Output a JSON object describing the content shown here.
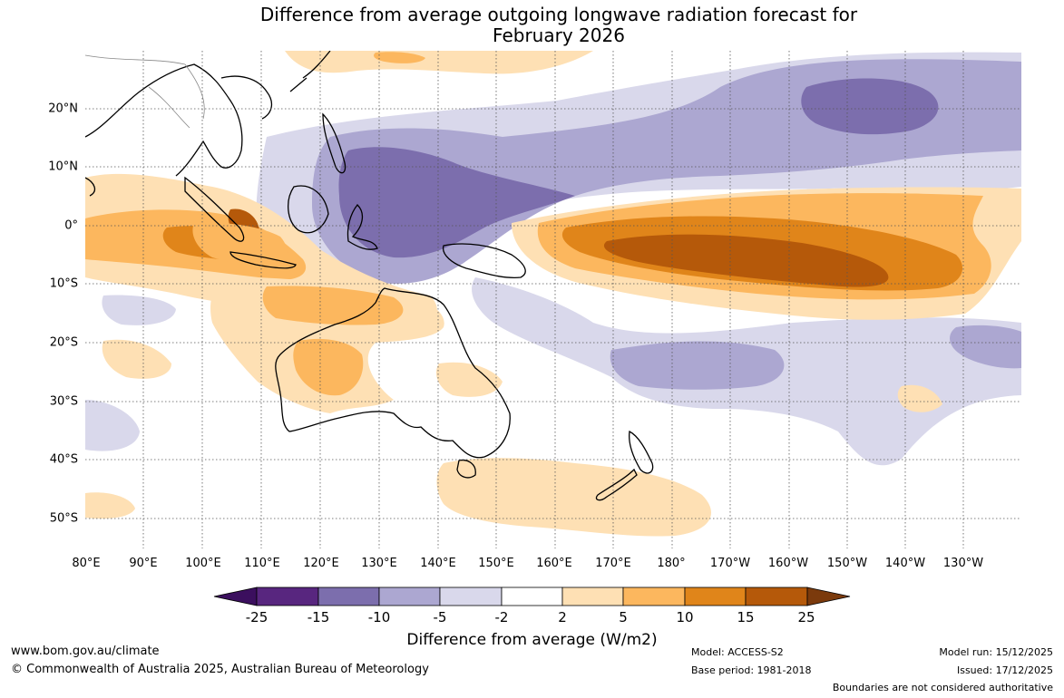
{
  "title": {
    "line1": "Difference from average outgoing longwave radiation forecast for",
    "line2": "February 2026"
  },
  "map": {
    "lat_labels": [
      "20°N",
      "10°N",
      "0°",
      "10°S",
      "20°S",
      "30°S",
      "40°S",
      "50°S"
    ],
    "lon_labels": [
      "80°E",
      "90°E",
      "100°E",
      "110°E",
      "120°E",
      "130°E",
      "140°E",
      "150°E",
      "160°E",
      "170°E",
      "180°",
      "170°W",
      "160°W",
      "150°W",
      "140°W",
      "130°W"
    ]
  },
  "colorbar": {
    "levels": [
      "-25",
      "-15",
      "-10",
      "-5",
      "-2",
      "2",
      "5",
      "10",
      "15",
      "25"
    ],
    "colors": [
      "#3b0f5e",
      "#58267f",
      "#7c6ead",
      "#aca7d1",
      "#d9d8eb",
      "#ffffff",
      "#fee0b4",
      "#fcb75e",
      "#e0851a",
      "#b5590a",
      "#7b3a0c"
    ],
    "title": "Difference from average (W/m2)"
  },
  "footer": {
    "url": "www.bom.gov.au/climate",
    "copyright": "© Commonwealth of Australia 2025, Australian Bureau of Meteorology",
    "model": "Model: ACCESS-S2",
    "base_period": "Base period: 1981-2018",
    "model_run": "Model run: 15/12/2025",
    "issued": "Issued: 17/12/2025",
    "disclaimer": "Boundaries are not considered authoritative"
  }
}
